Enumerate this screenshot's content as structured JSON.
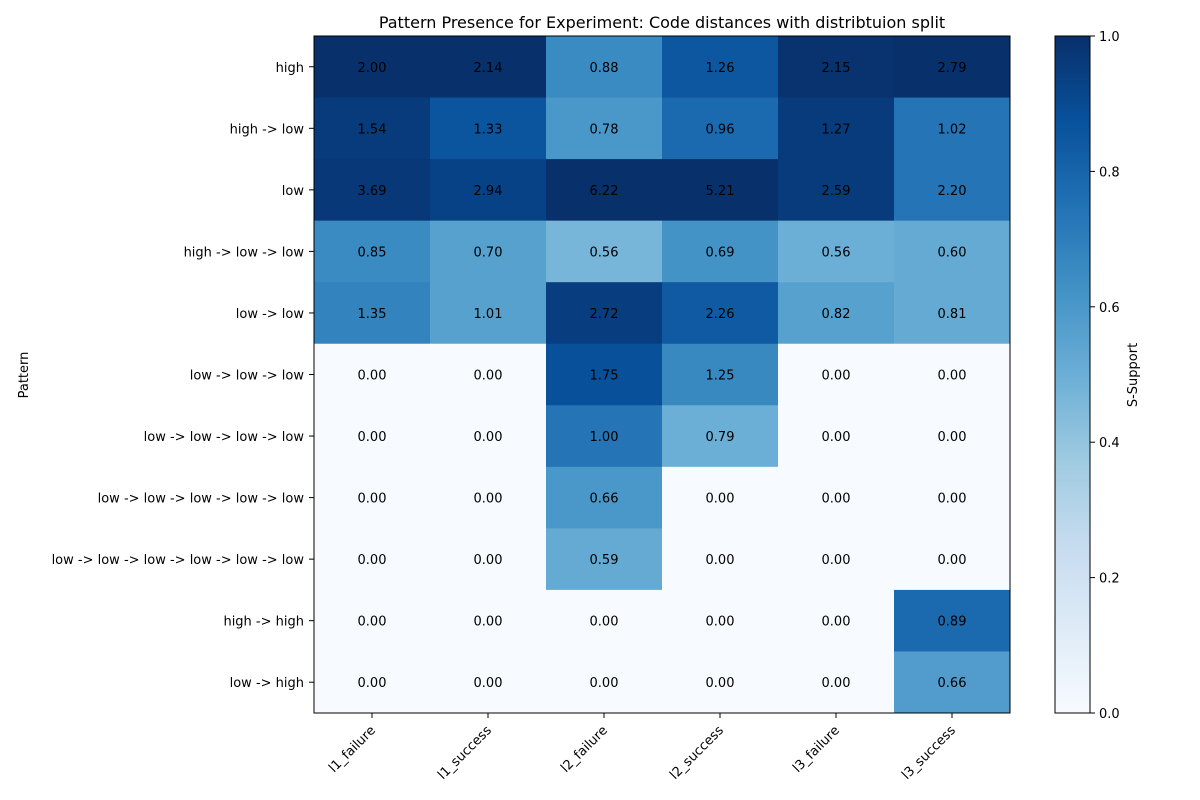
{
  "chart_data": {
    "type": "heatmap",
    "title": "Pattern Presence for Experiment: Code distances with distribtuion split",
    "ylabel": "Pattern",
    "xlabel": "",
    "columns": [
      "l1_failure",
      "l1_success",
      "l2_failure",
      "l2_success",
      "l3_failure",
      "l3_success"
    ],
    "rows": [
      "high",
      "high -> low",
      "low",
      "high -> low -> low",
      "low -> low",
      "low -> low -> low",
      "low -> low -> low -> low",
      "low -> low -> low -> low -> low",
      "low -> low -> low -> low -> low -> low",
      "high -> high",
      "low -> high"
    ],
    "values": [
      [
        2.0,
        2.14,
        0.88,
        1.26,
        2.15,
        2.79
      ],
      [
        1.54,
        1.33,
        0.78,
        0.96,
        1.27,
        1.02
      ],
      [
        3.69,
        2.94,
        6.22,
        5.21,
        2.59,
        2.2
      ],
      [
        0.85,
        0.7,
        0.56,
        0.69,
        0.56,
        0.6
      ],
      [
        1.35,
        1.01,
        2.72,
        2.26,
        0.82,
        0.81
      ],
      [
        0.0,
        0.0,
        1.75,
        1.25,
        0.0,
        0.0
      ],
      [
        0.0,
        0.0,
        1.0,
        0.79,
        0.0,
        0.0
      ],
      [
        0.0,
        0.0,
        0.66,
        0.0,
        0.0,
        0.0
      ],
      [
        0.0,
        0.0,
        0.59,
        0.0,
        0.0,
        0.0
      ],
      [
        0.0,
        0.0,
        0.0,
        0.0,
        0.0,
        0.89
      ],
      [
        0.0,
        0.0,
        0.0,
        0.0,
        0.0,
        0.66
      ]
    ],
    "color_values": [
      [
        1.0,
        1.0,
        0.65,
        0.85,
        0.99,
        1.0
      ],
      [
        0.96,
        0.86,
        0.6,
        0.78,
        0.96,
        0.74
      ],
      [
        0.97,
        0.93,
        1.0,
        1.0,
        0.96,
        0.74
      ],
      [
        0.65,
        0.56,
        0.47,
        0.62,
        0.5,
        0.52
      ],
      [
        0.68,
        0.56,
        0.95,
        0.84,
        0.56,
        0.52
      ],
      [
        0.0,
        0.0,
        0.88,
        0.66,
        0.0,
        0.0
      ],
      [
        0.0,
        0.0,
        0.74,
        0.5,
        0.0,
        0.0
      ],
      [
        0.0,
        0.0,
        0.6,
        0.0,
        0.0,
        0.0
      ],
      [
        0.0,
        0.0,
        0.52,
        0.0,
        0.0,
        0.0
      ],
      [
        0.0,
        0.0,
        0.0,
        0.0,
        0.0,
        0.78
      ],
      [
        0.0,
        0.0,
        0.0,
        0.0,
        0.0,
        0.58
      ]
    ],
    "colorbar": {
      "label": "S-Support",
      "range": [
        0.0,
        1.0
      ],
      "ticks": [
        "0.0",
        "0.2",
        "0.4",
        "0.6",
        "0.8",
        "1.0"
      ],
      "colormap": "Blues"
    },
    "grid": false
  }
}
